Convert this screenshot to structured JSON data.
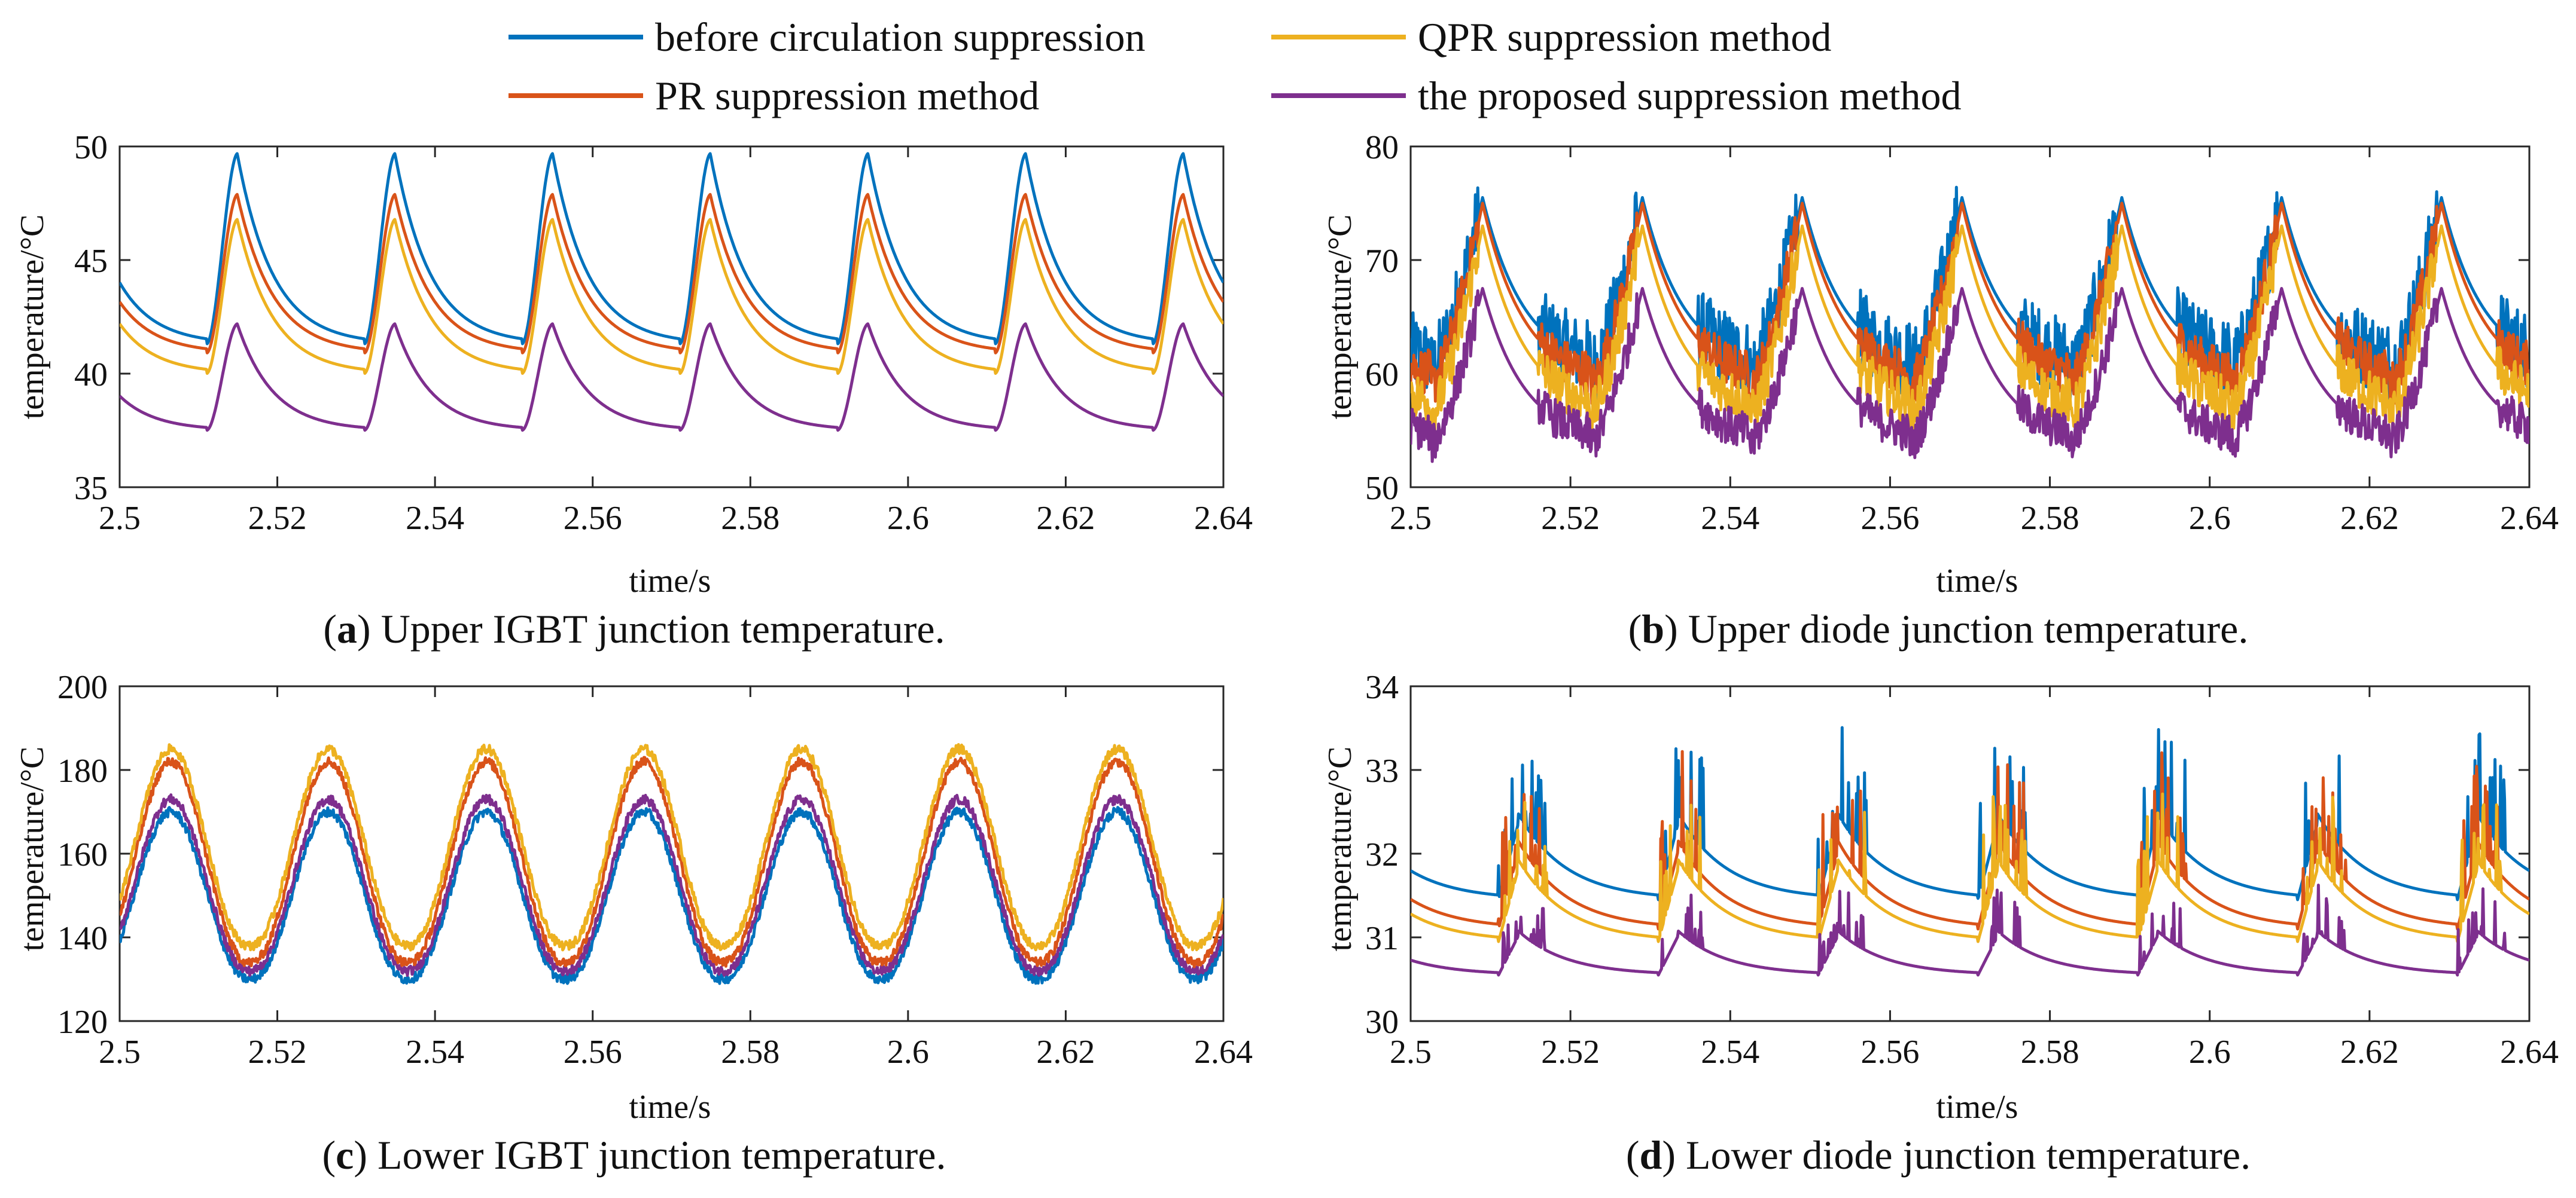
{
  "legend": [
    {
      "label": "before circulation suppression",
      "color": "#0072BD"
    },
    {
      "label": "QPR suppression method",
      "color": "#EDB120"
    },
    {
      "label": "PR suppression method",
      "color": "#D95319"
    },
    {
      "label": "the proposed suppression method",
      "color": "#7E2F8E"
    }
  ],
  "chart_data": [
    {
      "id": "a",
      "type": "line",
      "caption_letter": "a",
      "caption_text": "Upper IGBT junction temperature.",
      "xlabel": "time/s",
      "ylabel": "temperature/°C",
      "xlim": [
        2.5,
        2.64
      ],
      "ylim": [
        35,
        50
      ],
      "xticks": [
        "2.5",
        "2.52",
        "2.54",
        "2.56",
        "2.58",
        "2.6",
        "2.62",
        "2.64"
      ],
      "yticks": [
        "35",
        "40",
        "45",
        "50"
      ],
      "period": 0.02,
      "peak_times": [
        2.515,
        2.535,
        2.555,
        2.575,
        2.595,
        2.615,
        2.635
      ],
      "series": [
        {
          "name": "before circulation suppression",
          "min": 41.3,
          "max": 49.7
        },
        {
          "name": "PR suppression method",
          "min": 40.9,
          "max": 47.9
        },
        {
          "name": "QPR suppression method",
          "min": 40.0,
          "max": 46.8
        },
        {
          "name": "the proposed suppression method",
          "min": 37.5,
          "max": 42.2
        }
      ]
    },
    {
      "id": "b",
      "type": "line",
      "caption_letter": "b",
      "caption_text": "Upper diode junction temperature.",
      "xlabel": "time/s",
      "ylabel": "temperature/°C",
      "xlim": [
        2.5,
        2.64
      ],
      "ylim": [
        50,
        80
      ],
      "xticks": [
        "2.5",
        "2.52",
        "2.54",
        "2.56",
        "2.58",
        "2.6",
        "2.62",
        "2.64"
      ],
      "yticks": [
        "50",
        "60",
        "70",
        "80"
      ],
      "period": 0.02,
      "peak_times": [
        2.509,
        2.529,
        2.549,
        2.569,
        2.589,
        2.609,
        2.629
      ],
      "series": [
        {
          "name": "before circulation suppression",
          "min": 60.2,
          "max": 75.5
        },
        {
          "name": "PR suppression method",
          "min": 58.8,
          "max": 75.0
        },
        {
          "name": "QPR suppression method",
          "min": 56.3,
          "max": 73.0
        },
        {
          "name": "the proposed suppression method",
          "min": 53.7,
          "max": 67.5
        }
      ]
    },
    {
      "id": "c",
      "type": "line",
      "caption_letter": "c",
      "caption_text": "Lower IGBT junction temperature.",
      "xlabel": "time/s",
      "ylabel": "temperature/°C",
      "xlim": [
        2.5,
        2.64
      ],
      "ylim": [
        120,
        200
      ],
      "xticks": [
        "2.5",
        "2.52",
        "2.54",
        "2.56",
        "2.58",
        "2.6",
        "2.62",
        "2.64"
      ],
      "yticks": [
        "120",
        "140",
        "160",
        "180",
        "200"
      ],
      "period": 0.02,
      "peak_times": [
        2.5065,
        2.5265,
        2.5465,
        2.5665,
        2.5865,
        2.6065,
        2.6265
      ],
      "series": [
        {
          "name": "before circulation suppression",
          "min": 130,
          "max": 170
        },
        {
          "name": "the proposed suppression method",
          "min": 132,
          "max": 173
        },
        {
          "name": "PR suppression method",
          "min": 134,
          "max": 182
        },
        {
          "name": "QPR suppression method",
          "min": 138,
          "max": 185
        }
      ]
    },
    {
      "id": "d",
      "type": "line",
      "caption_letter": "d",
      "caption_text": "Lower diode junction temperature.",
      "xlabel": "time/s",
      "ylabel": "temperature/°C",
      "xlim": [
        2.5,
        2.64
      ],
      "ylim": [
        30,
        34
      ],
      "xticks": [
        "2.5",
        "2.52",
        "2.54",
        "2.56",
        "2.58",
        "2.6",
        "2.62",
        "2.64"
      ],
      "yticks": [
        "30",
        "31",
        "32",
        "33",
        "34"
      ],
      "period": 0.02,
      "peak_times": [
        2.5135,
        2.5335,
        2.5535,
        2.5735,
        2.5935,
        2.6135,
        2.6335
      ],
      "series": [
        {
          "name": "before circulation suppression",
          "min": 31.45,
          "max": 33.5
        },
        {
          "name": "PR suppression method",
          "min": 31.1,
          "max": 33.2
        },
        {
          "name": "QPR suppression method",
          "min": 30.95,
          "max": 32.9
        },
        {
          "name": "the proposed suppression method",
          "min": 30.55,
          "max": 31.6
        }
      ]
    }
  ]
}
